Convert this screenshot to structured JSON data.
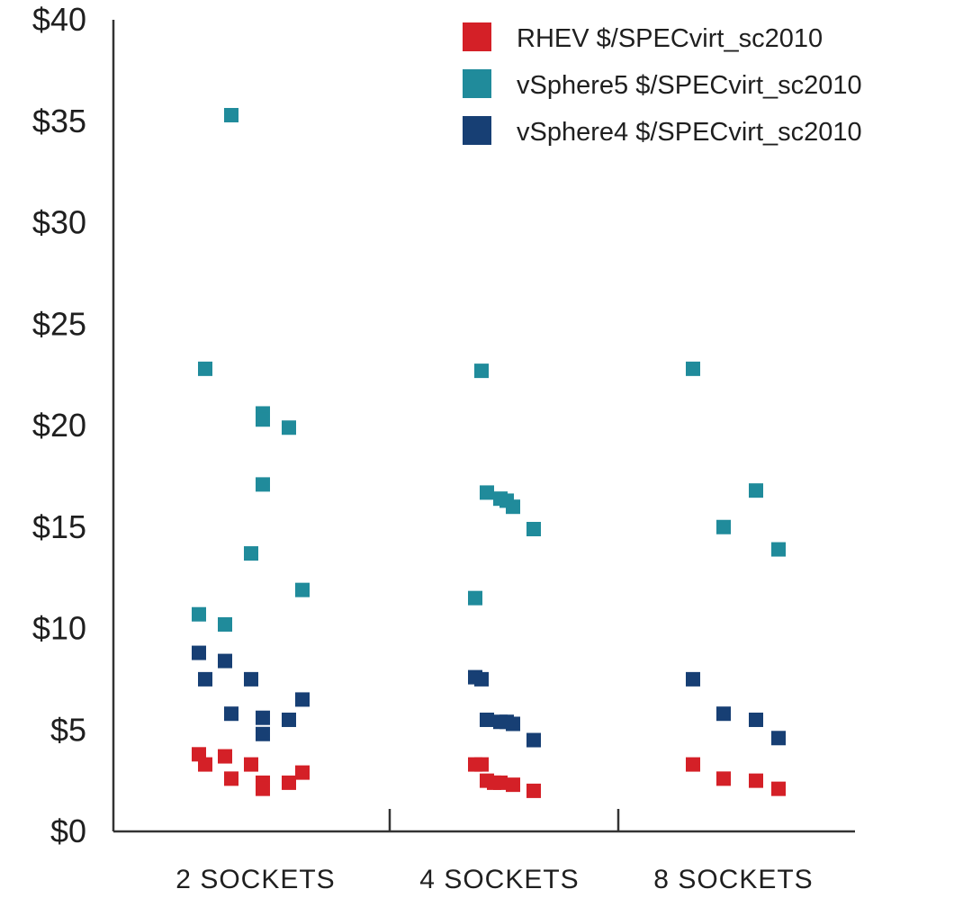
{
  "chart_data": {
    "type": "scatter",
    "title": "",
    "xlabel": "",
    "ylabel": "",
    "categories": [
      "2 SOCKETS",
      "4 SOCKETS",
      "8 SOCKETS"
    ],
    "y_tick_labels": [
      "$0",
      "$5",
      "$10",
      "$15",
      "$20",
      "$25",
      "$30",
      "$35",
      "$40"
    ],
    "y_ticks": [
      0,
      5,
      10,
      15,
      20,
      25,
      30,
      35,
      40
    ],
    "ylim": [
      0,
      40
    ],
    "grid": false,
    "legend_position": "top-right",
    "series": [
      {
        "name": "RHEV $/SPECvirt_sc2010",
        "color": "#d42027",
        "points": [
          {
            "category": "2 SOCKETS",
            "y": 3.8
          },
          {
            "category": "2 SOCKETS",
            "y": 3.3
          },
          {
            "category": "2 SOCKETS",
            "y": 3.7
          },
          {
            "category": "2 SOCKETS",
            "y": 2.6
          },
          {
            "category": "2 SOCKETS",
            "y": 3.3
          },
          {
            "category": "2 SOCKETS",
            "y": 2.4
          },
          {
            "category": "2 SOCKETS",
            "y": 2.1
          },
          {
            "category": "2 SOCKETS",
            "y": 2.4
          },
          {
            "category": "2 SOCKETS",
            "y": 2.9
          },
          {
            "category": "4 SOCKETS",
            "y": 3.3
          },
          {
            "category": "4 SOCKETS",
            "y": 3.3
          },
          {
            "category": "4 SOCKETS",
            "y": 2.5
          },
          {
            "category": "4 SOCKETS",
            "y": 2.4
          },
          {
            "category": "4 SOCKETS",
            "y": 2.4
          },
          {
            "category": "4 SOCKETS",
            "y": 2.3
          },
          {
            "category": "4 SOCKETS",
            "y": 2.0
          },
          {
            "category": "8 SOCKETS",
            "y": 3.3
          },
          {
            "category": "8 SOCKETS",
            "y": 2.6
          },
          {
            "category": "8 SOCKETS",
            "y": 2.5
          },
          {
            "category": "8 SOCKETS",
            "y": 2.1
          }
        ]
      },
      {
        "name": "vSphere5 $/SPECvirt_sc2010",
        "color": "#208b9b",
        "points": [
          {
            "category": "2 SOCKETS",
            "y": 35.3
          },
          {
            "category": "2 SOCKETS",
            "y": 22.8
          },
          {
            "category": "2 SOCKETS",
            "y": 20.6
          },
          {
            "category": "2 SOCKETS",
            "y": 20.3
          },
          {
            "category": "2 SOCKETS",
            "y": 19.9
          },
          {
            "category": "2 SOCKETS",
            "y": 17.1
          },
          {
            "category": "2 SOCKETS",
            "y": 13.7
          },
          {
            "category": "2 SOCKETS",
            "y": 11.9
          },
          {
            "category": "2 SOCKETS",
            "y": 10.7
          },
          {
            "category": "2 SOCKETS",
            "y": 10.2
          },
          {
            "category": "4 SOCKETS",
            "y": 22.7
          },
          {
            "category": "4 SOCKETS",
            "y": 16.7
          },
          {
            "category": "4 SOCKETS",
            "y": 16.4
          },
          {
            "category": "4 SOCKETS",
            "y": 16.3
          },
          {
            "category": "4 SOCKETS",
            "y": 16.0
          },
          {
            "category": "4 SOCKETS",
            "y": 14.9
          },
          {
            "category": "4 SOCKETS",
            "y": 11.5
          },
          {
            "category": "8 SOCKETS",
            "y": 22.8
          },
          {
            "category": "8 SOCKETS",
            "y": 16.8
          },
          {
            "category": "8 SOCKETS",
            "y": 15.0
          },
          {
            "category": "8 SOCKETS",
            "y": 13.9
          }
        ]
      },
      {
        "name": "vSphere4 $/SPECvirt_sc2010",
        "color": "#173f74",
        "points": [
          {
            "category": "2 SOCKETS",
            "y": 8.8
          },
          {
            "category": "2 SOCKETS",
            "y": 8.4
          },
          {
            "category": "2 SOCKETS",
            "y": 7.5
          },
          {
            "category": "2 SOCKETS",
            "y": 7.5
          },
          {
            "category": "2 SOCKETS",
            "y": 6.5
          },
          {
            "category": "2 SOCKETS",
            "y": 5.8
          },
          {
            "category": "2 SOCKETS",
            "y": 5.6
          },
          {
            "category": "2 SOCKETS",
            "y": 5.5
          },
          {
            "category": "2 SOCKETS",
            "y": 4.8
          },
          {
            "category": "4 SOCKETS",
            "y": 7.6
          },
          {
            "category": "4 SOCKETS",
            "y": 7.5
          },
          {
            "category": "4 SOCKETS",
            "y": 5.5
          },
          {
            "category": "4 SOCKETS",
            "y": 5.4
          },
          {
            "category": "4 SOCKETS",
            "y": 5.4
          },
          {
            "category": "4 SOCKETS",
            "y": 5.3
          },
          {
            "category": "4 SOCKETS",
            "y": 4.5
          },
          {
            "category": "8 SOCKETS",
            "y": 7.5
          },
          {
            "category": "8 SOCKETS",
            "y": 5.8
          },
          {
            "category": "8 SOCKETS",
            "y": 5.5
          },
          {
            "category": "8 SOCKETS",
            "y": 4.6
          }
        ]
      }
    ]
  }
}
